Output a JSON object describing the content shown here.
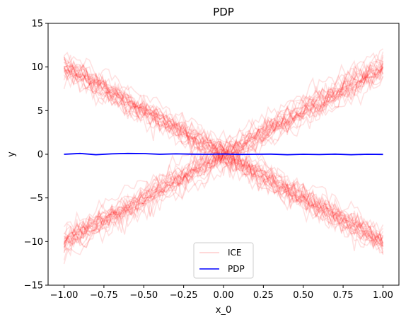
{
  "chart_data": {
    "type": "line",
    "title": "PDP",
    "xlabel": "x_0",
    "ylabel": "y",
    "xlim": [
      -1.1,
      1.1
    ],
    "ylim": [
      -15,
      15
    ],
    "xticks": [
      -1.0,
      -0.75,
      -0.5,
      -0.25,
      0.0,
      0.25,
      0.5,
      0.75,
      1.0
    ],
    "xtick_labels": [
      "−1.00",
      "−0.75",
      "−0.50",
      "−0.25",
      "0.00",
      "0.25",
      "0.50",
      "0.75",
      "1.00"
    ],
    "yticks": [
      -15,
      -10,
      -5,
      0,
      5,
      10,
      15
    ],
    "ytick_labels": [
      "−15",
      "−10",
      "−5",
      "0",
      "5",
      "10",
      "15"
    ],
    "grid": false,
    "legend_position": "bottom-center",
    "series": [
      {
        "name": "ICE",
        "color": "#ff0000",
        "opacity": 0.12,
        "description": "individual conditional expectation curves",
        "x": [
          -1.0,
          -0.75,
          -0.5,
          -0.25,
          0.0,
          0.25,
          0.5,
          0.75,
          1.0
        ],
        "curves": [
          [
            10.0,
            7.5,
            5.0,
            2.5,
            0.0,
            -2.5,
            -5.0,
            -7.5,
            -10.0
          ],
          [
            -10.0,
            -7.5,
            -5.0,
            -2.5,
            0.0,
            2.5,
            5.0,
            7.5,
            10.0
          ]
        ]
      },
      {
        "name": "PDP",
        "color": "#0000ff",
        "x": [
          -1.0,
          -0.9,
          -0.8,
          -0.7,
          -0.6,
          -0.5,
          -0.4,
          -0.3,
          -0.2,
          -0.1,
          0.0,
          0.1,
          0.2,
          0.3,
          0.4,
          0.5,
          0.6,
          0.7,
          0.8,
          0.9,
          1.0
        ],
        "y": [
          0.0,
          0.1,
          -0.05,
          0.05,
          0.1,
          0.08,
          0.0,
          0.05,
          0.02,
          0.0,
          0.03,
          -0.02,
          0.0,
          0.02,
          -0.05,
          0.0,
          -0.03,
          0.02,
          -0.05,
          0.0,
          -0.02
        ]
      }
    ]
  },
  "legend": {
    "ice_label": "ICE",
    "pdp_label": "PDP"
  }
}
